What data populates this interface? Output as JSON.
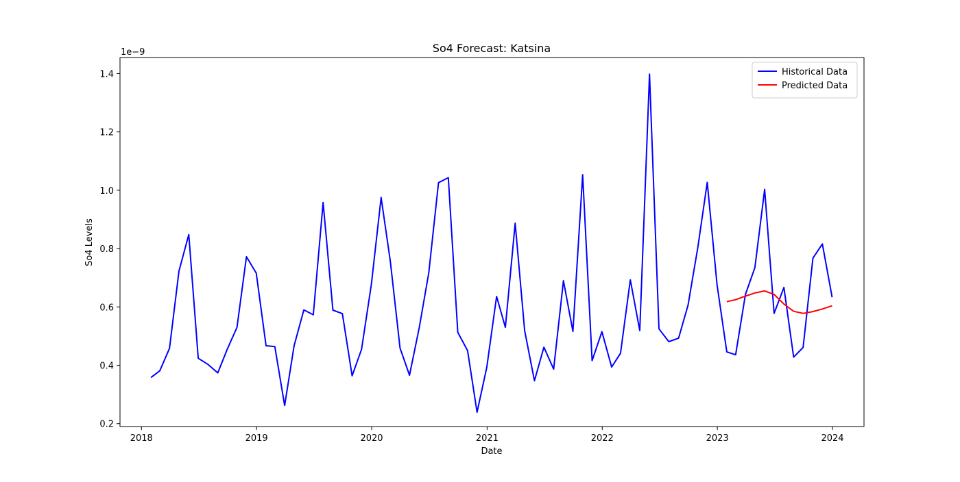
{
  "chart_data": {
    "type": "line",
    "title": "So4 Forecast: Katsina",
    "xlabel": "Date",
    "ylabel": "So4 Levels",
    "y_offset_text": "1e−9",
    "y_scale_factor": 1e-09,
    "xlim": [
      "2017-10-25",
      "2024-04-10"
    ],
    "ylim": [
      1.9e-10,
      1.455e-09
    ],
    "x_ticks": [
      "2018-01-01",
      "2019-01-01",
      "2020-01-01",
      "2021-01-01",
      "2022-01-01",
      "2023-01-01",
      "2024-01-01"
    ],
    "x_tick_labels": [
      "2018",
      "2019",
      "2020",
      "2021",
      "2022",
      "2023",
      "2024"
    ],
    "y_ticks": [
      2e-10,
      4e-10,
      6e-10,
      8e-10,
      1e-09,
      1.2e-09,
      1.4e-09
    ],
    "y_tick_labels": [
      "0.2",
      "0.4",
      "0.6",
      "0.8",
      "1.0",
      "1.2",
      "1.4"
    ],
    "grid": false,
    "legend_position": "top-right",
    "series": [
      {
        "name": "Historical Data",
        "color": "#0000ff",
        "x": [
          "2018-01-31",
          "2018-02-28",
          "2018-03-31",
          "2018-04-30",
          "2018-05-31",
          "2018-06-30",
          "2018-07-31",
          "2018-08-31",
          "2018-09-30",
          "2018-10-31",
          "2018-11-30",
          "2018-12-31",
          "2019-01-31",
          "2019-02-28",
          "2019-03-31",
          "2019-04-30",
          "2019-05-31",
          "2019-06-30",
          "2019-07-31",
          "2019-08-31",
          "2019-09-30",
          "2019-10-31",
          "2019-11-30",
          "2019-12-31",
          "2020-01-31",
          "2020-02-29",
          "2020-03-31",
          "2020-04-30",
          "2020-05-31",
          "2020-06-30",
          "2020-07-31",
          "2020-08-31",
          "2020-09-30",
          "2020-10-31",
          "2020-11-30",
          "2020-12-31",
          "2021-01-31",
          "2021-02-28",
          "2021-03-31",
          "2021-04-30",
          "2021-05-31",
          "2021-06-30",
          "2021-07-31",
          "2021-08-31",
          "2021-09-30",
          "2021-10-31",
          "2021-11-30",
          "2021-12-31",
          "2022-01-31",
          "2022-02-28",
          "2022-03-31",
          "2022-04-30",
          "2022-05-31",
          "2022-06-30",
          "2022-07-31",
          "2022-08-31",
          "2022-09-30",
          "2022-10-31",
          "2022-11-30",
          "2022-12-31",
          "2023-01-31",
          "2023-02-28",
          "2023-03-31",
          "2023-04-30",
          "2023-05-31",
          "2023-06-30",
          "2023-07-31",
          "2023-08-31",
          "2023-09-30",
          "2023-10-31",
          "2023-11-30",
          "2023-12-31"
        ],
        "values": [
          3.58e-10,
          3.81e-10,
          4.58e-10,
          7.23e-10,
          8.48e-10,
          4.24e-10,
          4.03e-10,
          3.74e-10,
          4.55e-10,
          5.3e-10,
          7.72e-10,
          7.16e-10,
          4.67e-10,
          4.64e-10,
          2.62e-10,
          4.67e-10,
          5.9e-10,
          5.73e-10,
          9.58e-10,
          5.89e-10,
          5.77e-10,
          3.64e-10,
          4.55e-10,
          6.78e-10,
          9.75e-10,
          7.57e-10,
          4.59e-10,
          3.66e-10,
          5.3e-10,
          7.17e-10,
          1.026e-09,
          1.043e-09,
          5.13e-10,
          4.5e-10,
          2.39e-10,
          3.93e-10,
          6.36e-10,
          5.3e-10,
          8.87e-10,
          5.19e-10,
          3.47e-10,
          4.62e-10,
          3.87e-10,
          6.9e-10,
          5.16e-10,
          1.053e-09,
          4.16e-10,
          5.15e-10,
          3.94e-10,
          4.41e-10,
          6.93e-10,
          5.19e-10,
          1.398e-09,
          5.25e-10,
          4.81e-10,
          4.93e-10,
          6.06e-10,
          8.03e-10,
          1.027e-09,
          6.76e-10,
          4.46e-10,
          4.36e-10,
          6.43e-10,
          7.35e-10,
          1.003e-09,
          5.78e-10,
          6.67e-10,
          4.28e-10,
          4.61e-10,
          7.67e-10,
          8.16e-10,
          6.33e-10
        ]
      },
      {
        "name": "Predicted Data",
        "color": "#ff0000",
        "x": [
          "2023-01-31",
          "2023-02-28",
          "2023-03-31",
          "2023-04-30",
          "2023-05-31",
          "2023-06-30",
          "2023-07-31",
          "2023-08-31",
          "2023-09-30",
          "2023-10-31",
          "2023-11-30",
          "2023-12-31"
        ],
        "values": [
          6.18e-10,
          6.25e-10,
          6.37e-10,
          6.48e-10,
          6.55e-10,
          6.43e-10,
          6.1e-10,
          5.85e-10,
          5.78e-10,
          5.84e-10,
          5.93e-10,
          6.04e-10
        ]
      }
    ]
  }
}
